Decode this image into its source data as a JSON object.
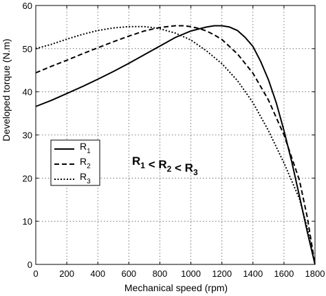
{
  "chart_data": {
    "type": "line",
    "title": "",
    "xlabel": "Mechanical speed (rpm)",
    "ylabel": "Developed torque (N.m)",
    "xlim": [
      0,
      1800
    ],
    "ylim": [
      0,
      60
    ],
    "xticks": [
      0,
      200,
      400,
      600,
      800,
      1000,
      1200,
      1400,
      1600,
      1800
    ],
    "yticks": [
      0,
      10,
      20,
      30,
      40,
      50,
      60
    ],
    "grid": true,
    "legend_position": "left",
    "annotation": {
      "parts": [
        {
          "text": "R",
          "sub": "1"
        },
        {
          "text": " < R",
          "sub": "2"
        },
        {
          "text": " < R",
          "sub": "3"
        }
      ]
    },
    "series": [
      {
        "name": "R",
        "name_sub": "1",
        "style": "solid",
        "x": [
          0,
          100,
          200,
          300,
          400,
          500,
          600,
          700,
          800,
          900,
          1000,
          1100,
          1150,
          1200,
          1250,
          1300,
          1350,
          1400,
          1450,
          1500,
          1550,
          1600,
          1650,
          1700,
          1750,
          1800
        ],
        "y": [
          36.6,
          38.0,
          39.6,
          41.2,
          42.9,
          44.7,
          46.6,
          48.6,
          50.6,
          52.6,
          54.1,
          55.0,
          55.3,
          55.3,
          55.0,
          54.2,
          52.6,
          50.5,
          47.0,
          42.8,
          37.5,
          31.0,
          23.8,
          15.8,
          7.6,
          0
        ]
      },
      {
        "name": "R",
        "name_sub": "2",
        "style": "dashed",
        "x": [
          0,
          100,
          200,
          300,
          400,
          500,
          600,
          700,
          800,
          900,
          950,
          1000,
          1050,
          1100,
          1150,
          1200,
          1300,
          1400,
          1500,
          1600,
          1700,
          1750,
          1800
        ],
        "y": [
          44.4,
          45.9,
          47.3,
          48.8,
          50.2,
          51.6,
          52.9,
          54.1,
          54.9,
          55.3,
          55.3,
          55.1,
          54.7,
          54.1,
          53.2,
          52.1,
          48.8,
          44.3,
          38.1,
          30.0,
          19.5,
          11.0,
          0
        ]
      },
      {
        "name": "R",
        "name_sub": "3",
        "style": "dotted",
        "x": [
          0,
          100,
          200,
          300,
          400,
          500,
          600,
          700,
          750,
          800,
          900,
          1000,
          1100,
          1200,
          1300,
          1400,
          1500,
          1600,
          1700,
          1750,
          1800
        ],
        "y": [
          50.0,
          51.0,
          52.2,
          53.3,
          54.2,
          54.8,
          55.1,
          55.1,
          54.9,
          54.6,
          53.6,
          52.0,
          49.5,
          46.5,
          42.6,
          37.5,
          31.0,
          23.5,
          15.2,
          8.5,
          0
        ]
      }
    ]
  }
}
